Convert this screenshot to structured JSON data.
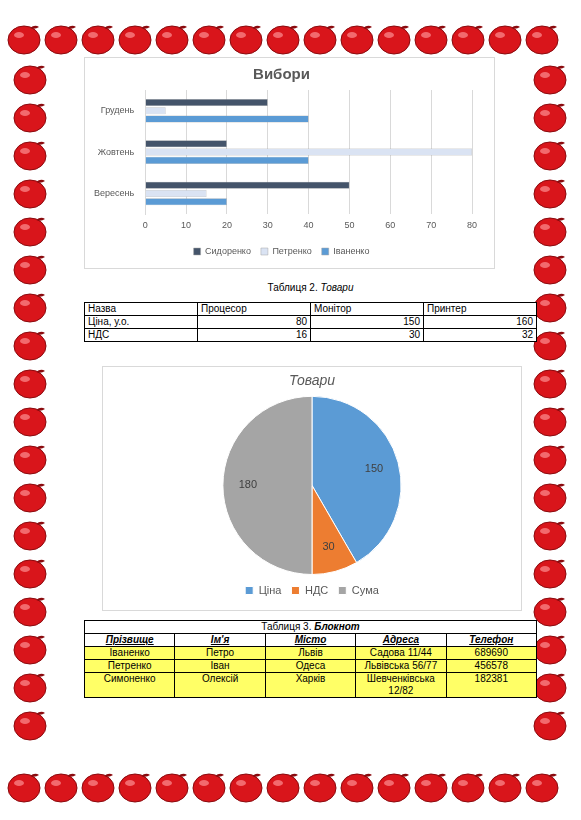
{
  "chart_data": [
    {
      "type": "bar",
      "title": "Вибори",
      "orientation": "horizontal",
      "categories": [
        "Грудень",
        "Жовтень",
        "Вересень"
      ],
      "series": [
        {
          "name": "Сидоренко",
          "color": "#44546a",
          "values": [
            30,
            20,
            50
          ]
        },
        {
          "name": "Петренко",
          "color": "#dae3f3",
          "values": [
            5,
            80,
            15
          ]
        },
        {
          "name": "Іваненко",
          "color": "#5b9bd5",
          "values": [
            40,
            40,
            20
          ]
        }
      ],
      "xlim": [
        0,
        80
      ],
      "xticks": [
        0,
        10,
        20,
        30,
        40,
        50,
        60,
        70,
        80
      ],
      "grid": true,
      "legend": "bottom"
    },
    {
      "type": "pie",
      "title": "Товари",
      "categories": [
        "Ціна",
        "НДС",
        "Сума"
      ],
      "values": [
        150,
        30,
        180
      ],
      "colors": [
        "#5b9bd5",
        "#ed7d31",
        "#a5a5a5"
      ],
      "data_labels": true,
      "legend": "bottom"
    }
  ],
  "tables": [
    {
      "caption": {
        "number": "Таблиця 2.",
        "title": "Товари"
      },
      "rows": [
        [
          "Назва",
          "Процесор",
          "Монітор",
          "Принтер"
        ],
        [
          "Ціна, у.о.",
          80,
          150,
          160
        ],
        [
          "НДС",
          16,
          30,
          32
        ]
      ]
    },
    {
      "caption": {
        "number": "Таблиця 3.",
        "title": "Блокнот"
      },
      "header": [
        "Прізвище",
        "Ім'я",
        "Місто",
        "Адреса",
        "Телефон"
      ],
      "rows": [
        [
          "Іваненко",
          "Петро",
          "Львів",
          "Садова 11/44",
          689690
        ],
        [
          "Петренко",
          "Іван",
          "Одеса",
          "Львівська 56/77",
          456578
        ],
        [
          "Симоненко",
          "Олексій",
          "Харків",
          "Шевченківська 12/82",
          182381
        ]
      ]
    }
  ]
}
